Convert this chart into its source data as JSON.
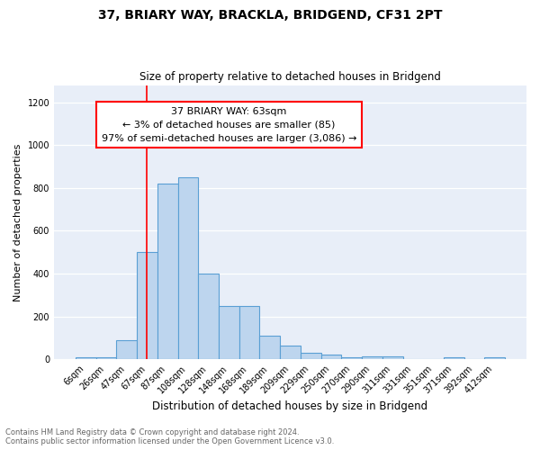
{
  "title": "37, BRIARY WAY, BRACKLA, BRIDGEND, CF31 2PT",
  "subtitle": "Size of property relative to detached houses in Bridgend",
  "xlabel": "Distribution of detached houses by size in Bridgend",
  "ylabel": "Number of detached properties",
  "bar_labels": [
    "6sqm",
    "26sqm",
    "47sqm",
    "67sqm",
    "87sqm",
    "108sqm",
    "128sqm",
    "148sqm",
    "168sqm",
    "189sqm",
    "209sqm",
    "229sqm",
    "250sqm",
    "270sqm",
    "290sqm",
    "311sqm",
    "331sqm",
    "351sqm",
    "371sqm",
    "392sqm",
    "412sqm"
  ],
  "bar_values": [
    10,
    10,
    90,
    500,
    820,
    850,
    400,
    250,
    250,
    110,
    65,
    30,
    20,
    10,
    13,
    13,
    0,
    0,
    10,
    0,
    10
  ],
  "bar_color": "#bdd5ee",
  "bar_edge_color": "#5a9fd4",
  "property_line_x": 3.0,
  "annotation_line1": "37 BRIARY WAY: 63sqm",
  "annotation_line2": "← 3% of detached houses are smaller (85)",
  "annotation_line3": "97% of semi-detached houses are larger (3,086) →",
  "ylim": [
    0,
    1280
  ],
  "yticks": [
    0,
    200,
    400,
    600,
    800,
    1000,
    1200
  ],
  "bg_color": "#e8eef8",
  "footer_line1": "Contains HM Land Registry data © Crown copyright and database right 2024.",
  "footer_line2": "Contains public sector information licensed under the Open Government Licence v3.0."
}
